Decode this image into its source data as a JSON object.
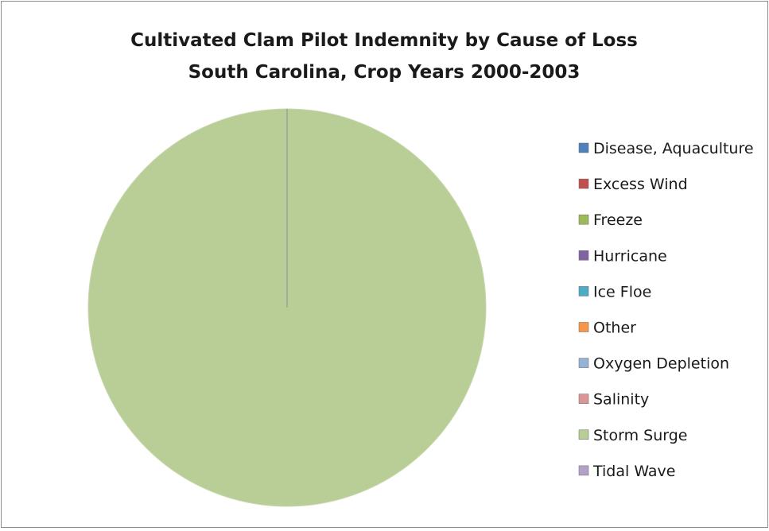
{
  "chart_data": {
    "type": "pie",
    "title": "Cultivated Clam Pilot Indemnity by Cause of Loss",
    "subtitle": "South Carolina, Crop Years 2000-2003",
    "legend_position": "right",
    "categories": [
      "Disease, Aquaculture",
      "Excess Wind",
      "Freeze",
      "Hurricane",
      "Ice Floe",
      "Other",
      "Oxygen Depletion",
      "Salinity",
      "Storm Surge",
      "Tidal Wave"
    ],
    "values": [
      0,
      0,
      0,
      0,
      0,
      0,
      0,
      0,
      100,
      0
    ],
    "colors": [
      "#4f81bd",
      "#c0504d",
      "#9bbb59",
      "#8064a2",
      "#4bacc6",
      "#f79646",
      "#95b3d7",
      "#d99694",
      "#b9cd96",
      "#b2a2c7"
    ]
  }
}
